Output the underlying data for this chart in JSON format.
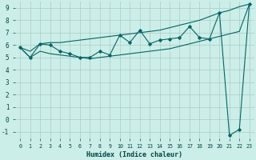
{
  "xlabel": "Humidex (Indice chaleur)",
  "bg_color": "#cceee8",
  "grid_color": "#b0d0cc",
  "line_color": "#006666",
  "xlim": [
    -0.5,
    23.5
  ],
  "ylim": [
    -1.5,
    9.5
  ],
  "xticks": [
    0,
    1,
    2,
    3,
    4,
    5,
    6,
    7,
    8,
    9,
    10,
    11,
    12,
    13,
    14,
    15,
    16,
    17,
    18,
    19,
    20,
    21,
    22,
    23
  ],
  "yticks": [
    -1,
    0,
    1,
    2,
    3,
    4,
    5,
    6,
    7,
    8,
    9
  ],
  "upper_line_x": [
    0,
    1,
    2,
    3,
    4,
    5,
    6,
    7,
    8,
    9,
    10,
    11,
    12,
    13,
    14,
    15,
    16,
    17,
    18,
    19,
    20,
    21,
    22,
    23
  ],
  "upper_line_y": [
    5.8,
    5.5,
    6.1,
    6.2,
    6.2,
    6.3,
    6.4,
    6.5,
    6.6,
    6.7,
    6.8,
    6.9,
    7.0,
    7.1,
    7.2,
    7.4,
    7.6,
    7.8,
    8.0,
    8.3,
    8.6,
    8.8,
    9.1,
    9.3
  ],
  "lower_line_x": [
    0,
    1,
    2,
    3,
    4,
    5,
    6,
    7,
    8,
    9,
    10,
    11,
    12,
    13,
    14,
    15,
    16,
    17,
    18,
    19,
    20,
    21,
    22,
    23
  ],
  "lower_line_y": [
    5.8,
    5.0,
    5.5,
    5.3,
    5.2,
    5.1,
    5.0,
    4.9,
    5.0,
    5.1,
    5.2,
    5.3,
    5.4,
    5.5,
    5.6,
    5.7,
    5.9,
    6.1,
    6.3,
    6.5,
    6.7,
    6.9,
    7.1,
    9.3
  ],
  "jagged_x": [
    0,
    1,
    2,
    3,
    4,
    5,
    6,
    7,
    8,
    9,
    10,
    11,
    12,
    13,
    14,
    15,
    16,
    17,
    18,
    19,
    20,
    21,
    22,
    23
  ],
  "jagged_y": [
    5.8,
    5.0,
    6.1,
    6.0,
    5.5,
    5.3,
    5.0,
    5.0,
    5.5,
    5.2,
    6.8,
    6.2,
    7.2,
    6.1,
    6.4,
    6.5,
    6.6,
    7.5,
    6.6,
    6.5,
    8.6,
    -1.3,
    -0.8,
    9.3
  ]
}
